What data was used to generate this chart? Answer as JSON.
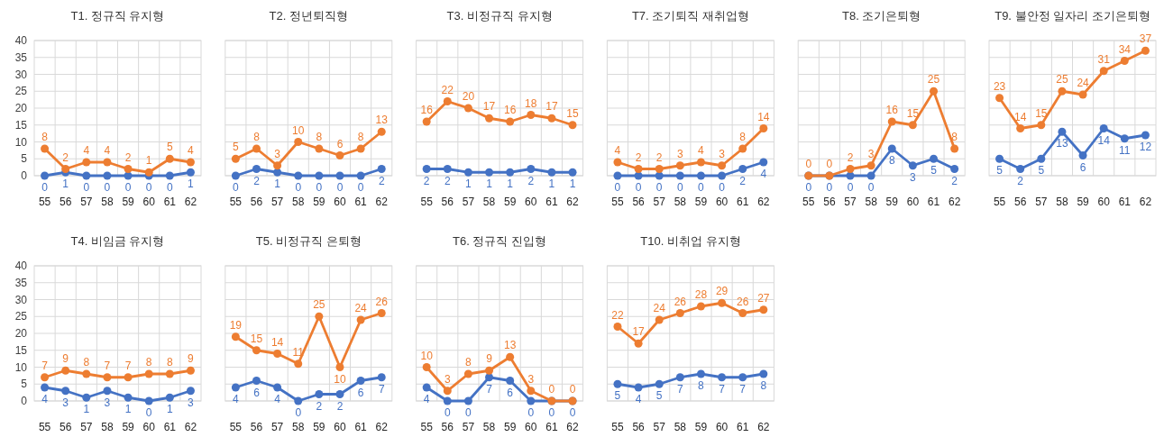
{
  "chart_data": [
    {
      "type": "line",
      "title": "T1. 정규직 유지형",
      "categories": [
        "55",
        "56",
        "57",
        "58",
        "59",
        "60",
        "61",
        "62"
      ],
      "series": [
        {
          "color": "#4472c4",
          "values": [
            0,
            1,
            0,
            0,
            0,
            0,
            0,
            1
          ]
        },
        {
          "color": "#ed7d31",
          "values": [
            8,
            2,
            4,
            4,
            2,
            1,
            5,
            4
          ]
        }
      ],
      "ylim": [
        0,
        40
      ],
      "yticks": [
        0,
        5,
        10,
        15,
        20,
        25,
        30,
        35,
        40
      ],
      "grid": true,
      "marker": "circle",
      "line_style": "solid",
      "data_labels": true
    },
    {
      "type": "line",
      "title": "T2. 정년퇴직형",
      "categories": [
        "55",
        "56",
        "57",
        "58",
        "59",
        "60",
        "61",
        "62"
      ],
      "series": [
        {
          "color": "#4472c4",
          "values": [
            0,
            2,
            1,
            0,
            0,
            0,
            0,
            2
          ]
        },
        {
          "color": "#ed7d31",
          "values": [
            5,
            8,
            3,
            10,
            8,
            6,
            8,
            13
          ]
        }
      ],
      "ylim": [
        0,
        40
      ],
      "yticks": [
        0,
        5,
        10,
        15,
        20,
        25,
        30,
        35,
        40
      ],
      "grid": true,
      "marker": "circle",
      "line_style": "solid",
      "data_labels": true,
      "tick_labels": "x"
    },
    {
      "type": "line",
      "title": "T3. 비정규직 유지형",
      "categories": [
        "55",
        "56",
        "57",
        "58",
        "59",
        "60",
        "61",
        "62"
      ],
      "series": [
        {
          "color": "#4472c4",
          "values": [
            2,
            2,
            1,
            1,
            1,
            2,
            1,
            1
          ]
        },
        {
          "color": "#ed7d31",
          "values": [
            16,
            22,
            20,
            17,
            16,
            18,
            17,
            15
          ]
        }
      ],
      "ylim": [
        0,
        40
      ],
      "yticks": [
        0,
        5,
        10,
        15,
        20,
        25,
        30,
        35,
        40
      ],
      "grid": true,
      "marker": "circle",
      "line_style": "solid",
      "data_labels": true,
      "tick_labels": "x"
    },
    {
      "type": "line",
      "title": "T7. 조기퇴직 재취업형",
      "categories": [
        "55",
        "56",
        "57",
        "58",
        "59",
        "60",
        "61",
        "62"
      ],
      "series": [
        {
          "color": "#4472c4",
          "values": [
            0,
            0,
            0,
            0,
            0,
            0,
            2,
            4
          ]
        },
        {
          "color": "#ed7d31",
          "values": [
            4,
            2,
            2,
            3,
            4,
            3,
            8,
            14
          ]
        }
      ],
      "ylim": [
        0,
        40
      ],
      "yticks": [
        0,
        5,
        10,
        15,
        20,
        25,
        30,
        35,
        40
      ],
      "grid": true,
      "marker": "circle",
      "line_style": "solid",
      "data_labels": true,
      "tick_labels": "x"
    },
    {
      "type": "line",
      "title": "T8. 조기은퇴형",
      "categories": [
        "55",
        "56",
        "57",
        "58",
        "59",
        "60",
        "61",
        "62"
      ],
      "series": [
        {
          "color": "#4472c4",
          "values": [
            0,
            0,
            0,
            0,
            8,
            3,
            5,
            2
          ]
        },
        {
          "color": "#ed7d31",
          "values": [
            0,
            0,
            2,
            3,
            16,
            15,
            25,
            8
          ]
        }
      ],
      "ylim": [
        0,
        40
      ],
      "yticks": [
        0,
        5,
        10,
        15,
        20,
        25,
        30,
        35,
        40
      ],
      "grid": true,
      "marker": "circle",
      "line_style": "solid",
      "data_labels": true,
      "tick_labels": "x"
    },
    {
      "type": "line",
      "title": "T9. 불안정 일자리 조기은퇴형",
      "categories": [
        "55",
        "56",
        "57",
        "58",
        "59",
        "60",
        "61",
        "62"
      ],
      "series": [
        {
          "color": "#4472c4",
          "values": [
            5,
            2,
            5,
            13,
            6,
            14,
            11,
            12
          ]
        },
        {
          "color": "#ed7d31",
          "values": [
            23,
            14,
            15,
            25,
            24,
            31,
            34,
            37
          ]
        }
      ],
      "ylim": [
        0,
        40
      ],
      "yticks": [
        0,
        5,
        10,
        15,
        20,
        25,
        30,
        35,
        40
      ],
      "grid": true,
      "marker": "circle",
      "line_style": "solid",
      "data_labels": true,
      "tick_labels": "x"
    },
    {
      "type": "line",
      "title": "T4. 비임금 유지형",
      "categories": [
        "55",
        "56",
        "57",
        "58",
        "59",
        "60",
        "61",
        "62"
      ],
      "series": [
        {
          "color": "#4472c4",
          "values": [
            4,
            3,
            1,
            3,
            1,
            0,
            1,
            3
          ]
        },
        {
          "color": "#ed7d31",
          "values": [
            7,
            9,
            8,
            7,
            7,
            8,
            8,
            9
          ]
        }
      ],
      "ylim": [
        0,
        40
      ],
      "yticks": [
        0,
        5,
        10,
        15,
        20,
        25,
        30,
        35,
        40
      ],
      "grid": true,
      "marker": "circle",
      "line_style": "solid",
      "data_labels": true
    },
    {
      "type": "line",
      "title": "T5. 비정규직 은퇴형",
      "categories": [
        "55",
        "56",
        "57",
        "58",
        "59",
        "60",
        "61",
        "62"
      ],
      "series": [
        {
          "color": "#4472c4",
          "values": [
            4,
            6,
            4,
            0,
            2,
            2,
            6,
            7
          ]
        },
        {
          "color": "#ed7d31",
          "values": [
            19,
            15,
            14,
            11,
            25,
            10,
            24,
            26
          ]
        }
      ],
      "ylim": [
        0,
        40
      ],
      "yticks": [
        0,
        5,
        10,
        15,
        20,
        25,
        30,
        35,
        40
      ],
      "grid": true,
      "marker": "circle",
      "line_style": "solid",
      "data_labels": true,
      "tick_labels": "x"
    },
    {
      "type": "line",
      "title": "T6. 정규직 진입형",
      "categories": [
        "55",
        "56",
        "57",
        "58",
        "59",
        "60",
        "61",
        "62"
      ],
      "series": [
        {
          "color": "#4472c4",
          "values": [
            4,
            0,
            0,
            7,
            6,
            0,
            0,
            0
          ]
        },
        {
          "color": "#ed7d31",
          "values": [
            10,
            3,
            8,
            9,
            13,
            3,
            0,
            0
          ]
        }
      ],
      "ylim": [
        0,
        40
      ],
      "yticks": [
        0,
        5,
        10,
        15,
        20,
        25,
        30,
        35,
        40
      ],
      "grid": true,
      "marker": "circle",
      "line_style": "solid",
      "data_labels": true,
      "tick_labels": "x"
    },
    {
      "type": "line",
      "title": "T10. 비취업 유지형",
      "categories": [
        "55",
        "56",
        "57",
        "58",
        "59",
        "60",
        "61",
        "62"
      ],
      "series": [
        {
          "color": "#4472c4",
          "values": [
            5,
            4,
            5,
            7,
            8,
            7,
            7,
            8
          ]
        },
        {
          "color": "#ed7d31",
          "values": [
            22,
            17,
            24,
            26,
            28,
            29,
            26,
            27
          ]
        }
      ],
      "ylim": [
        0,
        40
      ],
      "yticks": [
        0,
        5,
        10,
        15,
        20,
        25,
        30,
        35,
        40
      ],
      "grid": true,
      "marker": "circle",
      "line_style": "solid",
      "data_labels": true,
      "tick_labels": "x"
    }
  ]
}
